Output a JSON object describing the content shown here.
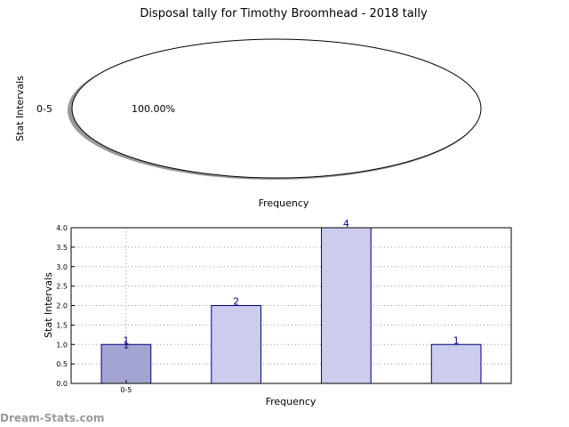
{
  "watermark": "Dream-Stats.com",
  "chart_data": [
    {
      "type": "pie",
      "title": "Disposal tally for Timothy Broomhead - 2018 tally",
      "xlabel": "Frequency",
      "ylabel": "Stat Intervals",
      "slices": [
        {
          "label": "0-5",
          "value": 100.0,
          "pct_label": "100.00%"
        }
      ],
      "colors": {
        "fill": "#ffffff",
        "edge": "#000000",
        "shadow": "#999999"
      }
    },
    {
      "type": "bar",
      "xlabel": "Frequency",
      "ylabel": "Stat Intervals",
      "categories": [
        "0-5",
        "",
        "",
        ""
      ],
      "values": [
        1,
        2,
        4,
        1
      ],
      "data_labels": [
        "1",
        "2",
        "4",
        "1"
      ],
      "extra_label": "1",
      "ylim": [
        0,
        4.0
      ],
      "yticks": [
        "0.0",
        "0.5",
        "1.0",
        "1.5",
        "2.0",
        "2.5",
        "3.0",
        "3.5",
        "4.0"
      ],
      "grid": true,
      "colors": {
        "bar": "#ccccee",
        "bar_highlight": "#a4a4d2",
        "edge": "#000080"
      }
    }
  ]
}
